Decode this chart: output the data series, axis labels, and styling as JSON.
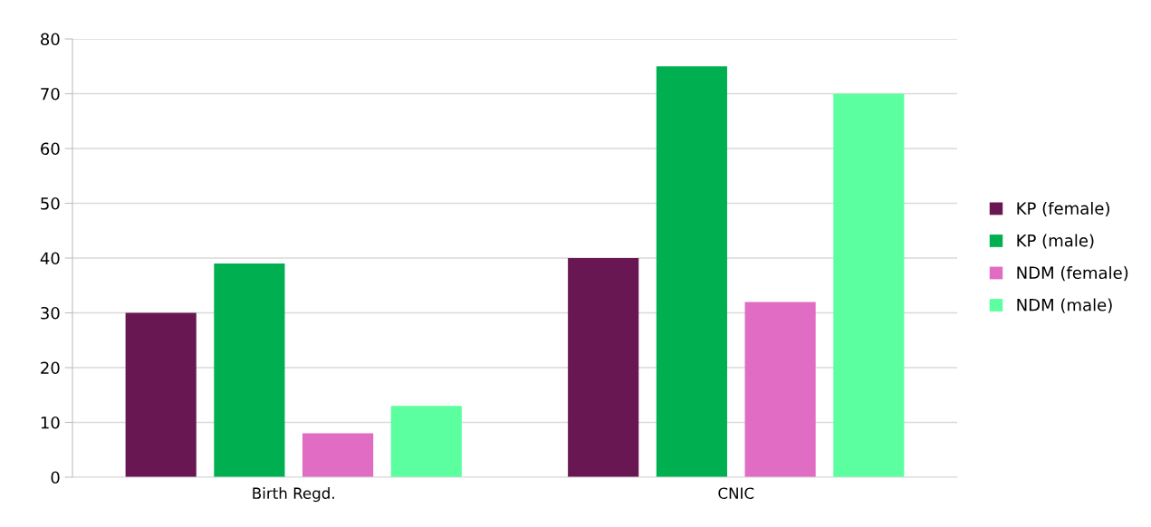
{
  "chart_data": {
    "type": "bar",
    "categories": [
      "Birth Regd.",
      "CNIC"
    ],
    "series": [
      {
        "name": "KP (female)",
        "color": "#681753",
        "values": [
          30,
          40
        ]
      },
      {
        "name": "KP (male)",
        "color": "#00b050",
        "values": [
          39,
          75
        ]
      },
      {
        "name": "NDM (female)",
        "color": "#e06cc3",
        "values": [
          8,
          32
        ]
      },
      {
        "name": "NDM (male)",
        "color": "#5cff9f",
        "values": [
          13,
          70
        ]
      }
    ],
    "ylim": [
      0,
      80
    ],
    "yticks": [
      0,
      10,
      20,
      30,
      40,
      50,
      60,
      70,
      80
    ],
    "grid": "y",
    "legend": "right"
  }
}
